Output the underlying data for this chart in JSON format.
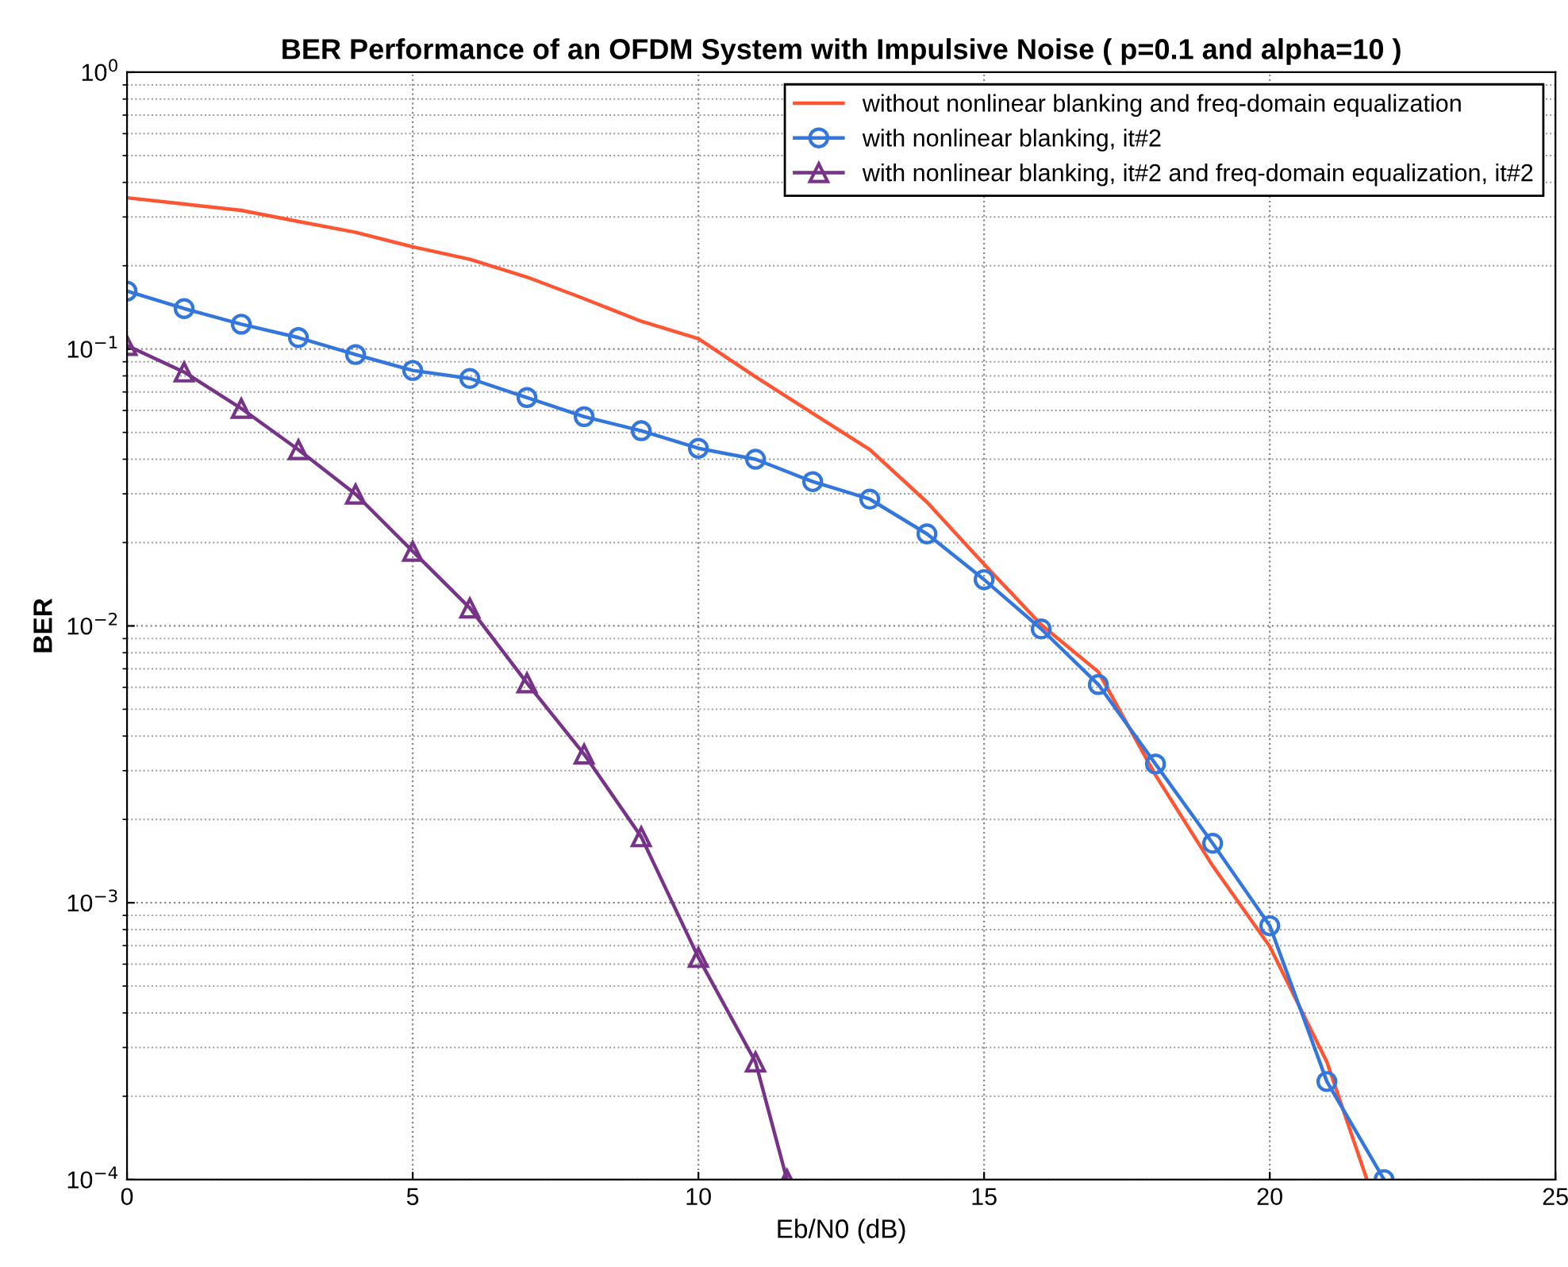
{
  "chart_data": {
    "type": "line",
    "title": "BER Performance of an OFDM System with Impulsive Noise ( p=0.1 and alpha=10 )",
    "xlabel": "Eb/N0 (dB)",
    "ylabel": "BER",
    "log": "y",
    "grid": true,
    "legend": "top right",
    "line_style": "solid",
    "xlim": [
      0,
      25
    ],
    "xticks": [
      0,
      5,
      10,
      15,
      20,
      25
    ],
    "ylim": [
      0.0001,
      1
    ],
    "yticks": [
      {
        "value": 0.0001,
        "label": "10$^{−4}$"
      },
      {
        "value": 0.001,
        "label": "10$^{−3}$"
      },
      {
        "value": 0.01,
        "label": "10$^{−2}$"
      },
      {
        "value": 0.1,
        "label": "10$^{−1}$"
      },
      {
        "value": 1,
        "label": "10$^{0}$"
      }
    ],
    "series": [
      {
        "name": "without nonlinear blanking and freq-domain equalization",
        "color": "#ff5533",
        "marker": "none",
        "x": [
          0,
          1,
          2,
          3,
          4,
          5,
          6,
          7,
          8,
          9,
          10,
          11,
          12,
          13,
          14,
          15,
          16,
          17,
          18,
          19,
          20,
          21,
          21.7
        ],
        "values": [
          0.352,
          0.334,
          0.317,
          0.289,
          0.264,
          0.234,
          0.211,
          0.182,
          0.152,
          0.126,
          0.109,
          0.0794,
          0.0586,
          0.0433,
          0.028,
          0.0167,
          0.0101,
          0.00682,
          0.00289,
          0.00136,
          0.000695,
          0.000266,
          0.0001
        ]
      },
      {
        "name": "with nonlinear blanking, it#2",
        "color": "#3377dd",
        "marker": "circle",
        "x": [
          0,
          1,
          2,
          3,
          4,
          5,
          6,
          7,
          8,
          9,
          10,
          11,
          12,
          13,
          14,
          15,
          16,
          17,
          18,
          19,
          20,
          21,
          22
        ],
        "values": [
          0.162,
          0.14,
          0.123,
          0.11,
          0.0955,
          0.0837,
          0.0783,
          0.0668,
          0.057,
          0.0507,
          0.0438,
          0.04,
          0.0332,
          0.0287,
          0.0215,
          0.0147,
          0.00975,
          0.00614,
          0.00317,
          0.00164,
          0.000826,
          0.000226,
          0.0001
        ]
      },
      {
        "name": "with nonlinear blanking, it#2 and freq-domain equalization, it#2",
        "color": "#773388",
        "marker": "triangle",
        "x": [
          0,
          1,
          2,
          3,
          4,
          5,
          6,
          7,
          8,
          9,
          10,
          11,
          11.55
        ],
        "values": [
          0.103,
          0.0826,
          0.061,
          0.0433,
          0.0299,
          0.0186,
          0.0116,
          0.00622,
          0.00344,
          0.00173,
          0.000634,
          0.000266,
          0.0001
        ]
      }
    ]
  }
}
